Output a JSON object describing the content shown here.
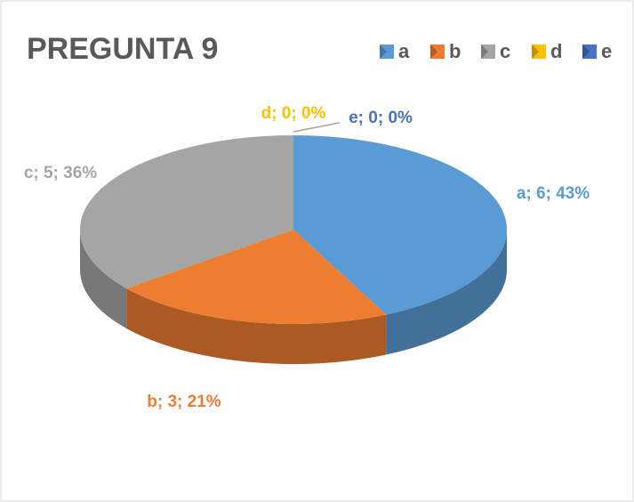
{
  "chart_data": {
    "type": "pie",
    "title": "PREGUNTA 9",
    "categories": [
      "a",
      "b",
      "c",
      "d",
      "e"
    ],
    "values": [
      6,
      3,
      5,
      0,
      0
    ],
    "value_labels": [
      "a; 6; 43%",
      "b; 3; 21%",
      "c; 5; 36%",
      "d; 0; 0%",
      "e; 0; 0%"
    ],
    "colors": [
      "#5b9bd5",
      "#ed7d31",
      "#a5a5a5",
      "#ffc000",
      "#4472c4"
    ],
    "legend": "top-right"
  }
}
